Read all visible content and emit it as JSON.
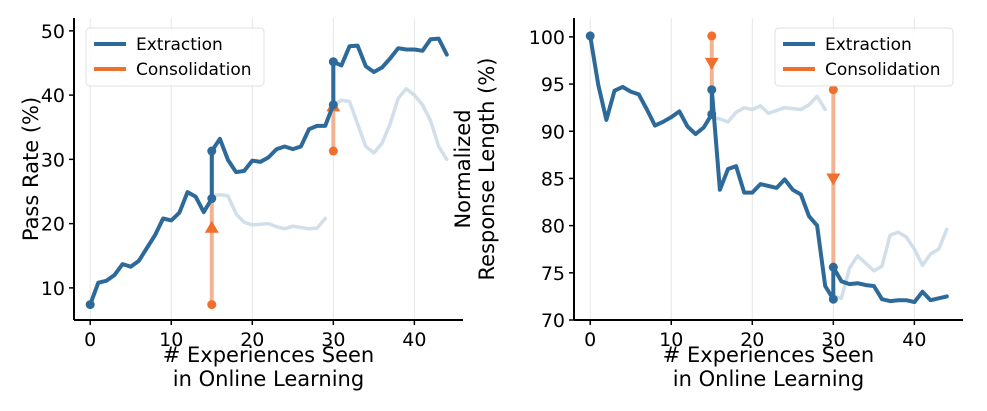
{
  "chart_data": [
    {
      "type": "line",
      "title": "",
      "xlabel_lines": [
        "# Experiences Seen",
        "in Online Learning"
      ],
      "ylabel_lines": [
        "Pass Rate (%)"
      ],
      "xlim": [
        -2,
        46
      ],
      "ylim": [
        5,
        52
      ],
      "xticks": [
        0,
        10,
        20,
        30,
        40
      ],
      "yticks": [
        10,
        20,
        30,
        40,
        50
      ],
      "legend_position": "top-left",
      "legend": [
        {
          "label": "Extraction",
          "color": "#2e6a99"
        },
        {
          "label": "Consolidation",
          "color": "#f06f2c"
        }
      ],
      "faded_series": [
        {
          "x": [
            15,
            16,
            17,
            18,
            19,
            20,
            21,
            22,
            23,
            24,
            25,
            26,
            27,
            28,
            29
          ],
          "y": [
            24.3,
            24.5,
            24.3,
            21.5,
            20.2,
            19.8,
            19.9,
            20,
            19.5,
            19.2,
            19.6,
            19.4,
            19.2,
            19.3,
            20.8
          ]
        },
        {
          "x": [
            30,
            31,
            32,
            33,
            34,
            35,
            36,
            37,
            38,
            39,
            40,
            41,
            42,
            43,
            44
          ],
          "y": [
            38.4,
            39.2,
            39,
            35.5,
            32,
            31,
            32.5,
            35.5,
            39.5,
            41,
            40,
            38.5,
            36,
            32,
            30
          ]
        }
      ],
      "main_series": {
        "name": "Extraction",
        "x": [
          0,
          1,
          2,
          3,
          4,
          5,
          6,
          7,
          8,
          9,
          10,
          11,
          12,
          13,
          14,
          15,
          15,
          16,
          17,
          18,
          19,
          20,
          21,
          22,
          23,
          24,
          25,
          26,
          27,
          28,
          29,
          30,
          30,
          31,
          32,
          33,
          34,
          35,
          36,
          37,
          38,
          39,
          40,
          41,
          42,
          43,
          44
        ],
        "y": [
          7.4,
          10.8,
          11.1,
          12,
          13.7,
          13.3,
          14.2,
          16.2,
          18.2,
          20.8,
          20.5,
          21.7,
          24.9,
          24.2,
          21.8,
          23.9,
          31.3,
          33.2,
          29.9,
          28,
          28.2,
          29.8,
          29.6,
          30.3,
          31.6,
          32,
          31.6,
          32,
          34.7,
          35.2,
          35.2,
          38.5,
          45.2,
          44.6,
          47.6,
          47.7,
          44.5,
          43.6,
          44.3,
          45.7,
          47.3,
          47.1,
          47.1,
          46.9,
          48.7,
          48.8,
          46.3
        ]
      },
      "consolidation_arrows": [
        {
          "x": 15,
          "from": 7.4,
          "to": 31.3
        },
        {
          "x": 30,
          "from": 31.3,
          "to": 45.2
        }
      ]
    },
    {
      "type": "line",
      "title": "",
      "xlabel_lines": [
        "# Experiences Seen",
        "in Online Learning"
      ],
      "ylabel_lines": [
        "Normalized",
        "Response Length (%)"
      ],
      "xlim": [
        -2,
        46
      ],
      "ylim": [
        70,
        102
      ],
      "xticks": [
        0,
        10,
        20,
        30,
        40
      ],
      "yticks": [
        70,
        75,
        80,
        85,
        90,
        95,
        100
      ],
      "legend_position": "top-right",
      "legend": [
        {
          "label": "Extraction",
          "color": "#2e6a99"
        },
        {
          "label": "Consolidation",
          "color": "#f06f2c"
        }
      ],
      "faded_series": [
        {
          "x": [
            15,
            16,
            17,
            18,
            19,
            20,
            21,
            22,
            23,
            24,
            25,
            26,
            27,
            28,
            29
          ],
          "y": [
            91.5,
            91.3,
            91,
            92,
            92.5,
            92.3,
            92.7,
            91.9,
            92.2,
            92.5,
            92.4,
            92.3,
            92.8,
            93.7,
            92.3
          ]
        },
        {
          "x": [
            30,
            31,
            32,
            33,
            34,
            35,
            36,
            37,
            38,
            39,
            40,
            41,
            42,
            43,
            44
          ],
          "y": [
            72.5,
            72.3,
            75.5,
            76.8,
            76,
            75.2,
            75.7,
            79,
            79.3,
            78.8,
            77.5,
            75.8,
            77,
            77.5,
            79.6
          ]
        }
      ],
      "main_series": {
        "name": "Extraction",
        "x": [
          0,
          1,
          2,
          3,
          4,
          5,
          6,
          7,
          8,
          9,
          10,
          11,
          12,
          13,
          14,
          15,
          15,
          16,
          17,
          18,
          19,
          20,
          21,
          22,
          23,
          24,
          25,
          26,
          27,
          28,
          29,
          30,
          30,
          31,
          32,
          33,
          34,
          35,
          36,
          37,
          38,
          39,
          40,
          41,
          42,
          43,
          44
        ],
        "y": [
          100.1,
          94.9,
          91.2,
          94.3,
          94.7,
          94.2,
          93.9,
          92.3,
          90.6,
          91,
          91.5,
          92.1,
          90.5,
          89.7,
          90.4,
          91.8,
          94.4,
          83.8,
          86,
          86.3,
          83.5,
          83.5,
          84.4,
          84.2,
          84,
          84.9,
          83.8,
          83.3,
          81,
          80,
          73.6,
          72.2,
          75.6,
          74.1,
          73.8,
          73.9,
          73.7,
          73.6,
          72.2,
          72,
          72.1,
          72.1,
          71.9,
          73,
          72.1,
          72.3,
          72.5
        ]
      },
      "consolidation_arrows": [
        {
          "x": 15,
          "from": 100.1,
          "to": 94.4
        },
        {
          "x": 30,
          "from": 94.4,
          "to": 75.6
        }
      ]
    }
  ]
}
